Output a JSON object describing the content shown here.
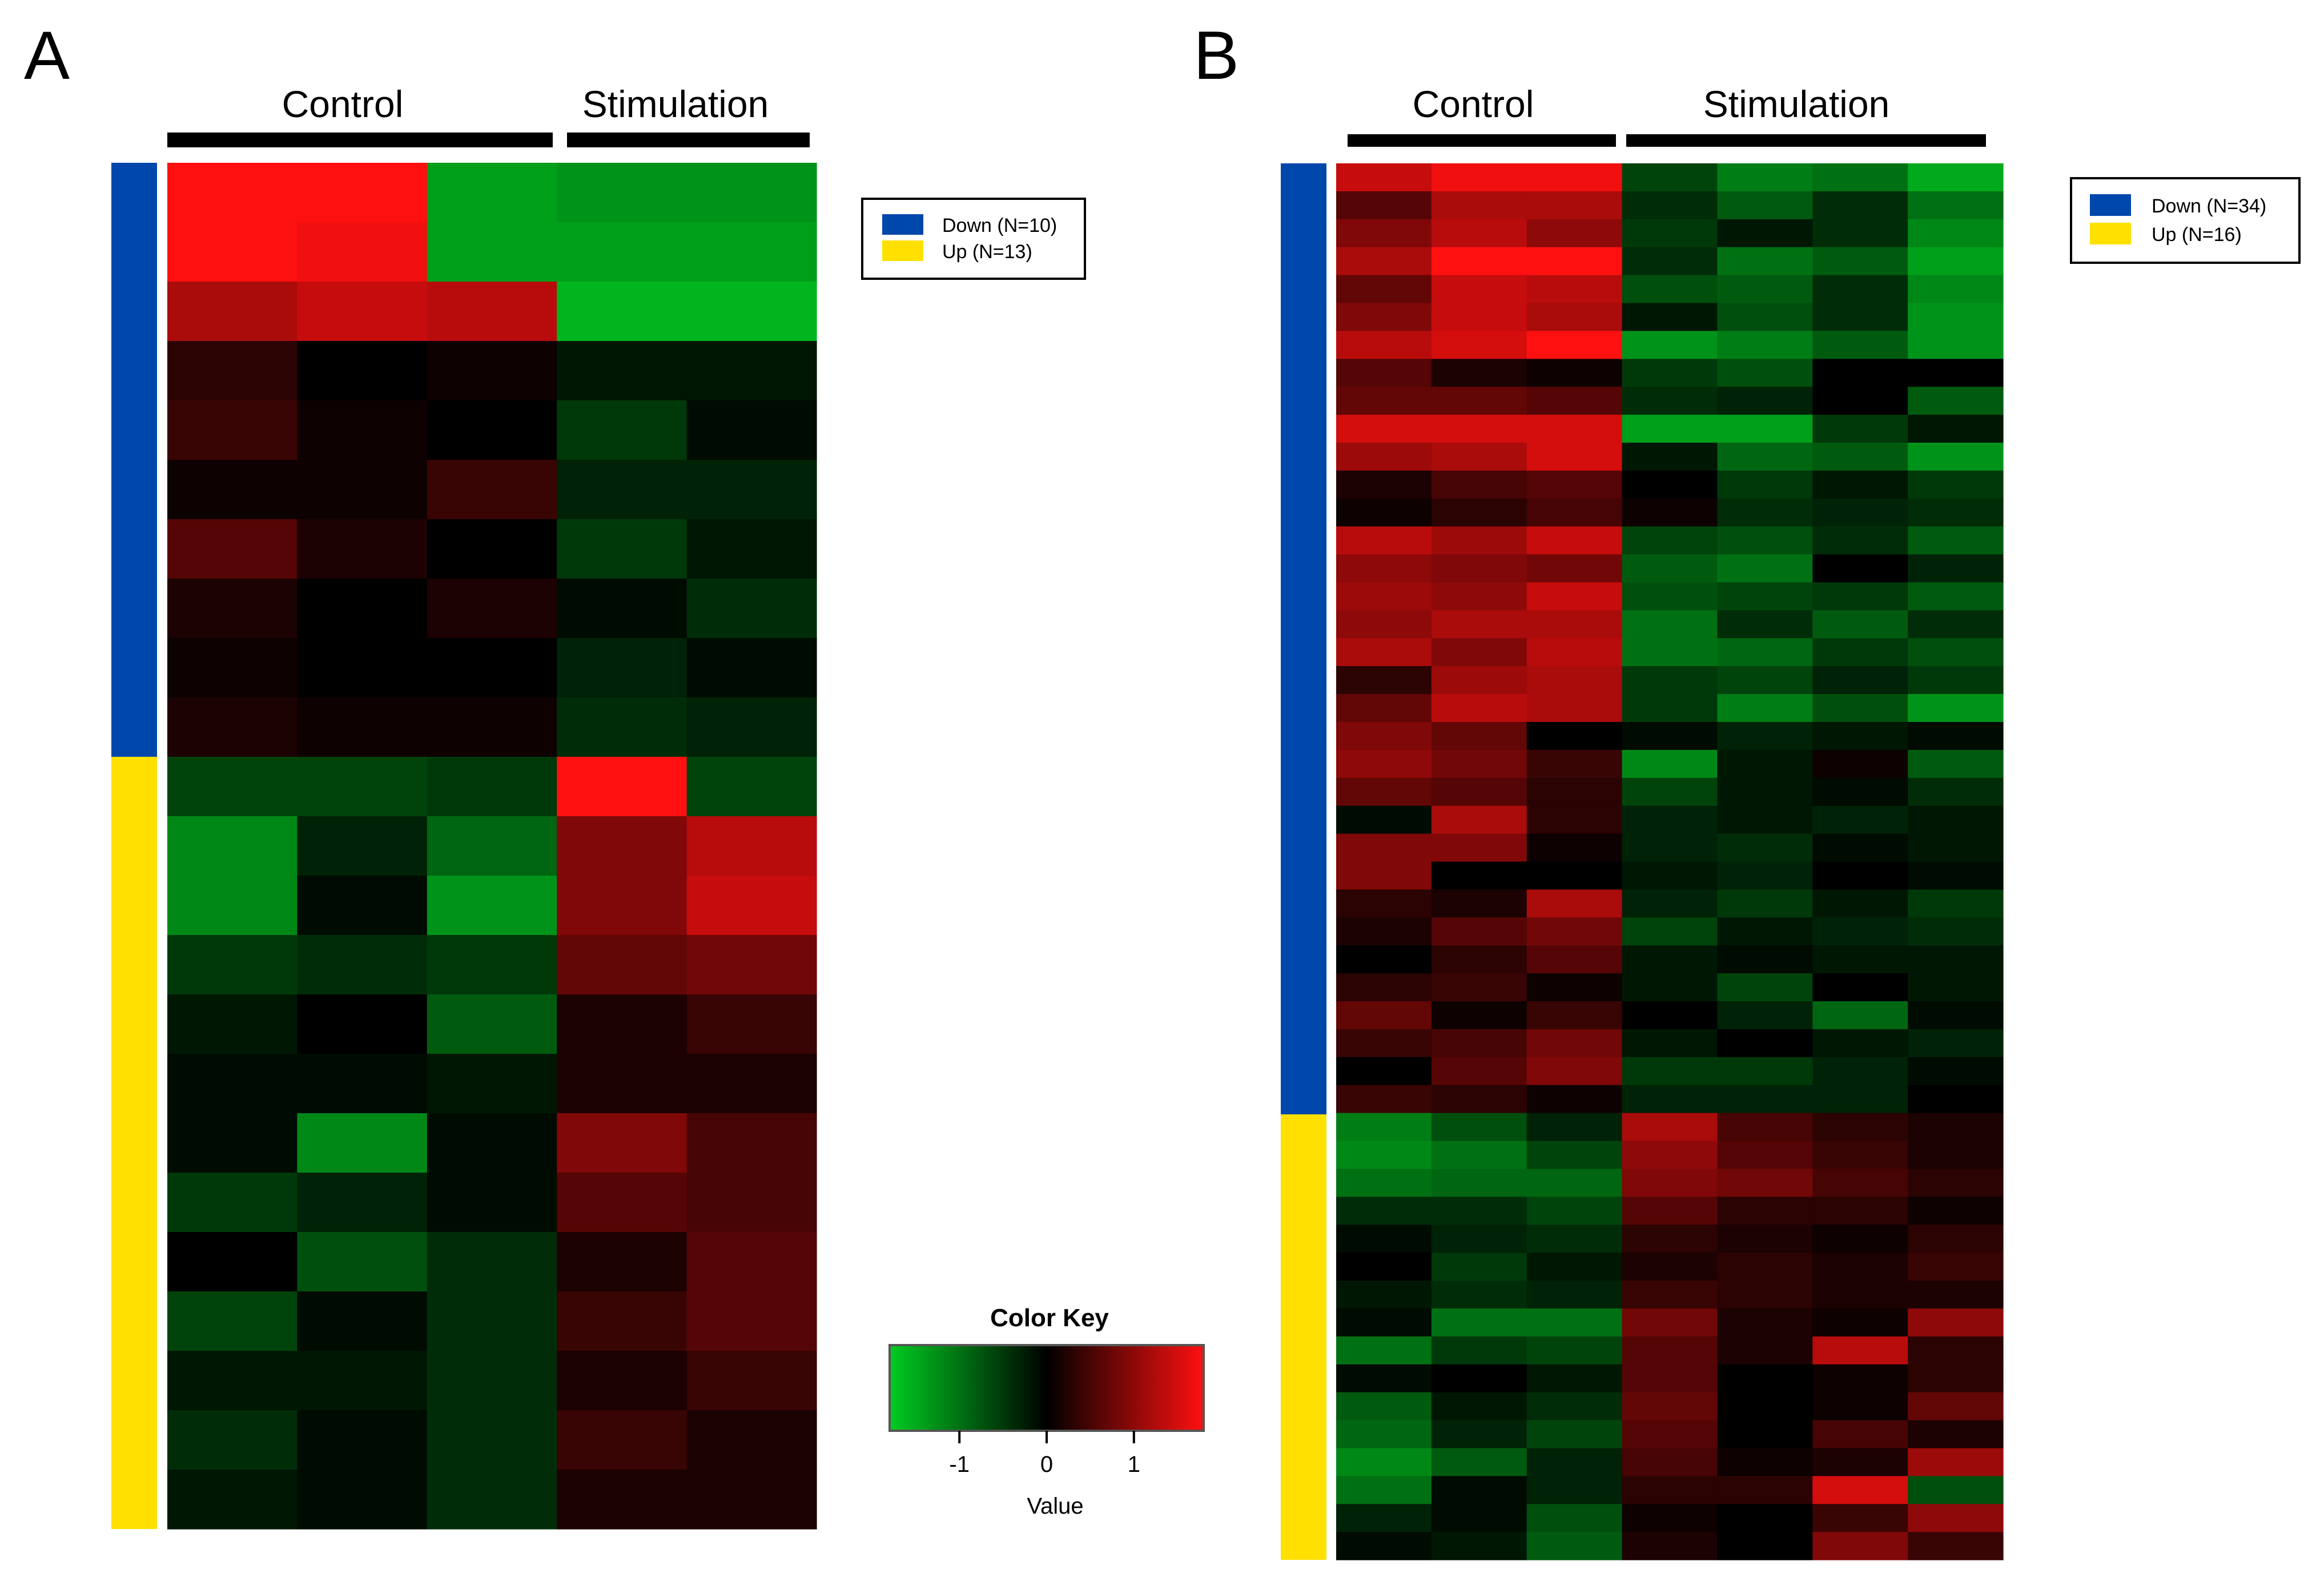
{
  "chart_data": [
    {
      "type": "heatmap",
      "panel_label": "A",
      "column_groups": [
        {
          "label": "Control",
          "columns": 3
        },
        {
          "label": "Stimulation",
          "columns": 2
        }
      ],
      "row_groups": [
        {
          "name": "Down",
          "count": 10,
          "color": "#0047AB"
        },
        {
          "name": "Up",
          "count": 13,
          "color": "#FFE000"
        }
      ],
      "legend_entries": [
        "Down (N=10)",
        "Up (N=13)"
      ],
      "legend_position": "top-right",
      "values": [
        [
          1.8,
          1.8,
          -1.4,
          -1.3,
          -1.3
        ],
        [
          1.8,
          1.7,
          -1.4,
          -1.4,
          -1.4
        ],
        [
          1.2,
          1.4,
          1.3,
          -1.6,
          -1.6
        ],
        [
          0.3,
          0.0,
          0.1,
          -0.2,
          -0.2
        ],
        [
          0.4,
          0.1,
          0.0,
          -0.5,
          -0.1
        ],
        [
          0.1,
          0.1,
          0.4,
          -0.3,
          -0.3
        ],
        [
          0.6,
          0.2,
          0.0,
          -0.5,
          -0.2
        ],
        [
          0.2,
          0.0,
          0.2,
          -0.1,
          -0.4
        ],
        [
          0.1,
          0.0,
          0.0,
          -0.3,
          -0.1
        ],
        [
          0.2,
          0.1,
          0.1,
          -0.4,
          -0.3
        ],
        [
          -0.6,
          -0.6,
          -0.5,
          1.8,
          -0.6
        ],
        [
          -1.2,
          -0.3,
          -0.9,
          0.9,
          1.3
        ],
        [
          -1.2,
          -0.1,
          -1.3,
          0.9,
          1.4
        ],
        [
          -0.5,
          -0.4,
          -0.5,
          0.7,
          0.8
        ],
        [
          -0.2,
          0.0,
          -0.8,
          0.2,
          0.4
        ],
        [
          -0.1,
          -0.1,
          -0.2,
          0.2,
          0.2
        ],
        [
          -0.1,
          -1.2,
          -0.1,
          0.9,
          0.5
        ],
        [
          -0.5,
          -0.3,
          -0.1,
          0.6,
          0.5
        ],
        [
          0.0,
          -0.7,
          -0.4,
          0.2,
          0.6
        ],
        [
          -0.6,
          -0.1,
          -0.4,
          0.4,
          0.6
        ],
        [
          -0.2,
          -0.2,
          -0.4,
          0.2,
          0.4
        ],
        [
          -0.4,
          -0.1,
          -0.4,
          0.4,
          0.2
        ],
        [
          -0.2,
          -0.1,
          -0.4,
          0.2,
          0.2
        ]
      ]
    },
    {
      "type": "heatmap",
      "panel_label": "B",
      "column_groups": [
        {
          "label": "Control",
          "columns": 3
        },
        {
          "label": "Stimulation",
          "columns": 4
        }
      ],
      "row_groups": [
        {
          "name": "Down",
          "count": 34,
          "color": "#0047AB"
        },
        {
          "name": "Up",
          "count": 16,
          "color": "#FFE000"
        }
      ],
      "legend_entries": [
        "Down (N=34)",
        "Up (N=16)"
      ],
      "legend_position": "top-right",
      "values": [
        [
          1.4,
          1.7,
          1.7,
          -0.6,
          -1.1,
          -1.0,
          -1.5
        ],
        [
          0.6,
          1.2,
          1.2,
          -0.4,
          -0.8,
          -0.4,
          -1.0
        ],
        [
          0.9,
          1.3,
          1.0,
          -0.5,
          -0.2,
          -0.4,
          -1.2
        ],
        [
          1.2,
          1.8,
          1.8,
          -0.4,
          -1.0,
          -0.8,
          -1.4
        ],
        [
          0.7,
          1.4,
          1.3,
          -0.7,
          -0.8,
          -0.4,
          -1.2
        ],
        [
          0.9,
          1.4,
          1.2,
          -0.2,
          -0.7,
          -0.4,
          -1.3
        ],
        [
          1.3,
          1.5,
          1.8,
          -1.3,
          -1.1,
          -0.8,
          -1.3
        ],
        [
          0.6,
          0.2,
          0.1,
          -0.5,
          -0.7,
          0.0,
          0.0
        ],
        [
          0.7,
          0.7,
          0.6,
          -0.4,
          -0.3,
          0.0,
          -0.8
        ],
        [
          1.5,
          1.5,
          1.5,
          -1.4,
          -1.4,
          -0.5,
          -0.2
        ],
        [
          1.1,
          1.2,
          1.5,
          -0.2,
          -0.9,
          -0.8,
          -1.3
        ],
        [
          0.2,
          0.5,
          0.6,
          0.0,
          -0.5,
          -0.2,
          -0.5
        ],
        [
          0.1,
          0.3,
          0.5,
          0.1,
          -0.4,
          -0.3,
          -0.4
        ],
        [
          1.3,
          1.1,
          1.4,
          -0.6,
          -0.7,
          -0.4,
          -0.8
        ],
        [
          1.0,
          0.9,
          0.8,
          -0.8,
          -1.0,
          0.0,
          -0.3
        ],
        [
          1.1,
          1.0,
          1.4,
          -0.7,
          -0.6,
          -0.5,
          -0.8
        ],
        [
          1.0,
          1.2,
          1.2,
          -1.0,
          -0.4,
          -0.8,
          -0.4
        ],
        [
          1.2,
          0.9,
          1.3,
          -1.0,
          -0.9,
          -0.5,
          -0.7
        ],
        [
          0.3,
          1.1,
          1.2,
          -0.5,
          -0.6,
          -0.3,
          -0.5
        ],
        [
          0.7,
          1.3,
          1.2,
          -0.5,
          -1.1,
          -0.7,
          -1.3
        ],
        [
          0.9,
          0.7,
          0.0,
          -0.1,
          -0.3,
          -0.2,
          -0.1
        ],
        [
          1.0,
          0.8,
          0.4,
          -1.2,
          -0.2,
          0.1,
          -0.8
        ],
        [
          0.7,
          0.6,
          0.3,
          -0.6,
          -0.2,
          -0.1,
          -0.4
        ],
        [
          -0.1,
          1.2,
          0.3,
          -0.3,
          -0.2,
          -0.3,
          -0.2
        ],
        [
          0.9,
          0.9,
          0.1,
          -0.3,
          -0.4,
          -0.1,
          -0.2
        ],
        [
          0.9,
          0.0,
          0.0,
          -0.2,
          -0.3,
          0.0,
          -0.1
        ],
        [
          0.3,
          0.2,
          1.2,
          -0.3,
          -0.5,
          -0.2,
          -0.5
        ],
        [
          0.2,
          0.6,
          0.8,
          -0.6,
          -0.2,
          -0.3,
          -0.4
        ],
        [
          0.0,
          0.3,
          0.6,
          -0.2,
          -0.1,
          -0.2,
          -0.2
        ],
        [
          0.3,
          0.4,
          0.1,
          -0.2,
          -0.6,
          0.0,
          -0.2
        ],
        [
          0.7,
          0.1,
          0.4,
          0.0,
          -0.3,
          -0.9,
          -0.1
        ],
        [
          0.4,
          0.5,
          0.8,
          -0.2,
          0.0,
          -0.2,
          -0.3
        ],
        [
          0.0,
          0.6,
          0.9,
          -0.5,
          -0.5,
          -0.3,
          -0.1
        ],
        [
          0.4,
          0.3,
          0.1,
          -0.3,
          -0.3,
          -0.3,
          0.0
        ],
        [
          -1.1,
          -0.7,
          -0.3,
          1.2,
          0.5,
          0.3,
          0.2
        ],
        [
          -1.2,
          -1.0,
          -0.6,
          1.0,
          0.6,
          0.4,
          0.2
        ],
        [
          -1.0,
          -0.9,
          -0.9,
          0.9,
          0.8,
          0.5,
          0.3
        ],
        [
          -0.4,
          -0.4,
          -0.6,
          0.6,
          0.3,
          0.3,
          0.1
        ],
        [
          -0.1,
          -0.3,
          -0.4,
          0.3,
          0.2,
          0.1,
          0.3
        ],
        [
          0.0,
          -0.5,
          -0.2,
          0.2,
          0.3,
          0.2,
          0.4
        ],
        [
          -0.2,
          -0.4,
          -0.3,
          0.4,
          0.3,
          0.2,
          0.2
        ],
        [
          -0.1,
          -1.0,
          -1.0,
          0.8,
          0.2,
          0.1,
          1.0
        ],
        [
          -1.0,
          -0.5,
          -0.6,
          0.6,
          0.2,
          1.3,
          0.3
        ],
        [
          -0.1,
          0.0,
          -0.2,
          0.6,
          0.0,
          0.1,
          0.3
        ],
        [
          -0.8,
          -0.2,
          -0.4,
          0.7,
          0.0,
          0.1,
          0.7
        ],
        [
          -0.9,
          -0.3,
          -0.6,
          0.6,
          0.0,
          0.5,
          0.2
        ],
        [
          -1.2,
          -0.8,
          -0.3,
          0.5,
          0.1,
          0.2,
          1.1
        ],
        [
          -1.0,
          -0.1,
          -0.3,
          0.3,
          0.3,
          1.5,
          -0.7
        ],
        [
          -0.3,
          -0.1,
          -0.7,
          0.1,
          0.0,
          0.4,
          1.0
        ],
        [
          -0.1,
          -0.2,
          -0.8,
          0.2,
          0.0,
          0.9,
          0.4
        ]
      ]
    }
  ],
  "color_key": {
    "title": "Color Key",
    "xlabel": "Value",
    "ticks": [
      -1,
      0,
      1
    ],
    "range": [
      -1.8,
      1.8
    ],
    "colors": {
      "low": "#00CC22",
      "mid": "#000000",
      "high": "#FF1010"
    }
  }
}
